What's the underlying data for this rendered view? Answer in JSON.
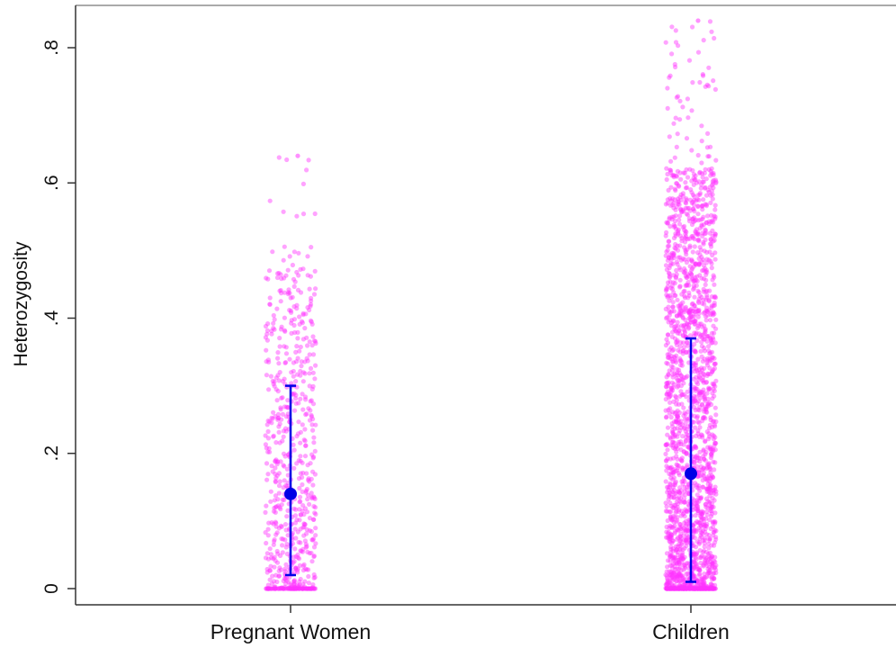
{
  "chart_data": {
    "type": "scatter",
    "subtype": "jittered strip plot with mean and error bars",
    "title": "",
    "xlabel": "",
    "ylabel": "Heterozygosity",
    "categories": [
      "Pregnant Women",
      "Children"
    ],
    "ylim": [
      0,
      0.85
    ],
    "y_ticks": [
      {
        "value": 0,
        "label": "0"
      },
      {
        "value": 0.2,
        "label": ".2"
      },
      {
        "value": 0.4,
        "label": ".4"
      },
      {
        "value": 0.6,
        "label": ".6"
      },
      {
        "value": 0.8,
        "label": ".8"
      }
    ],
    "grid": false,
    "series": [
      {
        "category": "Pregnant Women",
        "n_points_approx": 700,
        "min": 0,
        "max": 0.64,
        "mean": 0.14,
        "error_low": 0.02,
        "error_high": 0.3
      },
      {
        "category": "Children",
        "n_points_approx": 2200,
        "min": 0,
        "max": 0.84,
        "mean": 0.17,
        "error_low": 0.01,
        "error_high": 0.37
      }
    ],
    "colors": {
      "points": "#ff33ff",
      "mean_marker": "#0000e6",
      "error_bar": "#0000e6",
      "axis": "#333333"
    }
  }
}
